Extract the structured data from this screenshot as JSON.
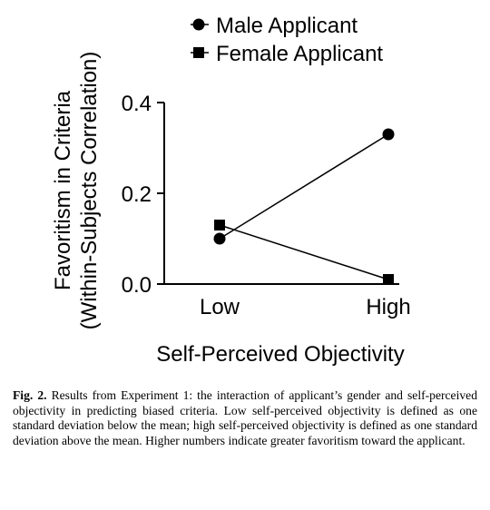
{
  "chart_data": {
    "type": "line",
    "categories": [
      "Low",
      "High"
    ],
    "series": [
      {
        "name": "Male Applicant",
        "marker": "circle",
        "values": [
          0.1,
          0.33
        ]
      },
      {
        "name": "Female Applicant",
        "marker": "square",
        "values": [
          0.13,
          0.01
        ]
      }
    ],
    "xlabel": "Self-Perceived Objectivity",
    "ylabel_line1": "Favoritism in Criteria",
    "ylabel_line2": "(Within-Subjects Correlation)",
    "ylim": [
      0,
      0.4
    ],
    "yticks": [
      "0.0",
      "0.2",
      "0.4"
    ],
    "legend_position": "top",
    "grid": false
  },
  "caption": {
    "label": "Fig. 2.",
    "text": "Results from Experiment 1: the interaction of applicant’s gender and self-perceived objectivity in predicting biased criteria. Low self-perceived objectivity is defined as one standard deviation below the mean; high self-perceived objectivity is defined as one standard deviation above the mean. Higher numbers indicate greater favoritism toward the applicant."
  }
}
